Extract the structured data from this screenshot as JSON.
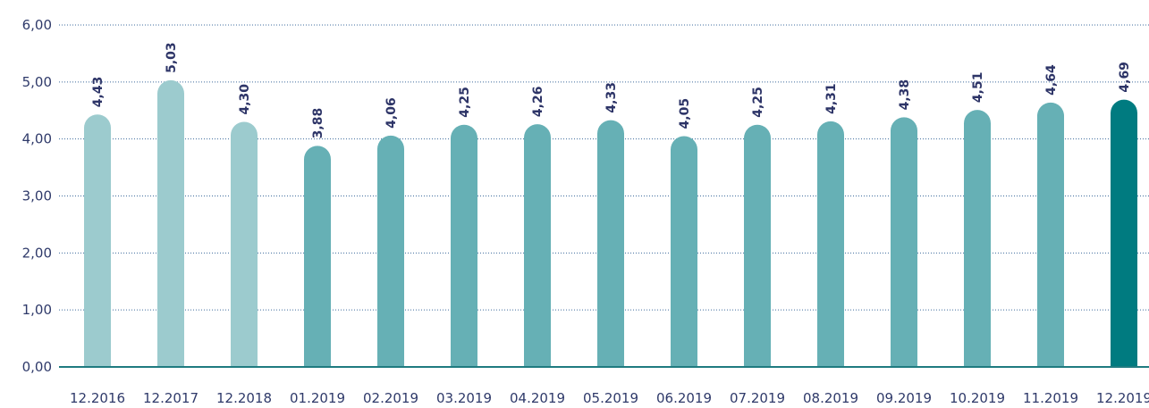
{
  "chart_data": {
    "type": "bar",
    "categories": [
      "12.2016",
      "12.2017",
      "12.2018",
      "01.2019",
      "02.2019",
      "03.2019",
      "04.2019",
      "05.2019",
      "06.2019",
      "07.2019",
      "08.2019",
      "09.2019",
      "10.2019",
      "11.2019",
      "12.2019"
    ],
    "values": [
      4.43,
      5.03,
      4.3,
      3.88,
      4.06,
      4.25,
      4.26,
      4.33,
      4.05,
      4.25,
      4.31,
      4.38,
      4.51,
      4.64,
      4.69
    ],
    "value_labels": [
      "4,43",
      "5,03",
      "4,30",
      "3,88",
      "4,06",
      "4,25",
      "4,26",
      "4,33",
      "4,05",
      "4,25",
      "4,31",
      "4,38",
      "4,51",
      "4,64",
      "4,69"
    ],
    "colors": [
      "#9ccbce",
      "#9ccbce",
      "#9ccbce",
      "#66b0b5",
      "#66b0b5",
      "#66b0b5",
      "#66b0b5",
      "#66b0b5",
      "#66b0b5",
      "#66b0b5",
      "#66b0b5",
      "#66b0b5",
      "#66b0b5",
      "#66b0b5",
      "#007b80"
    ],
    "ylim": [
      0,
      6
    ],
    "yticks": [
      {
        "value": 0,
        "label": "0,00"
      },
      {
        "value": 1,
        "label": "1,00"
      },
      {
        "value": 2,
        "label": "2,00"
      },
      {
        "value": 3,
        "label": "3,00"
      },
      {
        "value": 4,
        "label": "4,00"
      },
      {
        "value": 5,
        "label": "5,00"
      },
      {
        "value": 6,
        "label": "6,00"
      }
    ],
    "grid": true
  }
}
